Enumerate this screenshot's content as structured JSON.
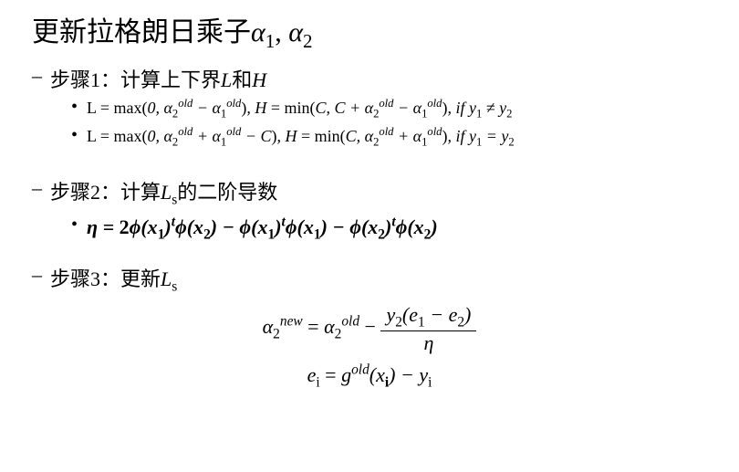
{
  "title": "更新拉格朗日乘子α₁, α₂",
  "steps": {
    "step1": {
      "label": "步骤1：计算上下界L和H",
      "formula1": "L = max(0, α₂ᵒˡᵈ − α₁ᵒˡᵈ), H = min(C, C + α₂ᵒˡᵈ − α₁ᵒˡᵈ), if y₁ ≠ y₂",
      "formula2": "L = max(0, α₂ᵒˡᵈ + α₁ᵒˡᵈ − C), H = min(C, α₂ᵒˡᵈ + α₁ᵒˡᵈ), if y₁ = y₂"
    },
    "step2": {
      "label": "步骤2：计算Lₛ的二阶导数",
      "formula": "η = 2ϕ(x₁)ᵗϕ(x₂) − ϕ(x₁)ᵗϕ(x₁) − ϕ(x₂)ᵗϕ(x₂)"
    },
    "step3": {
      "label": "步骤3：更新Lₛ",
      "formula_alpha_lhs": "α₂ⁿᵉʷ = α₂ᵒˡᵈ −",
      "formula_alpha_num": "y₂(e₁ − e₂)",
      "formula_alpha_den": "η",
      "formula_e": "eᵢ = gᵒˡᵈ(xᵢ) − yᵢ"
    }
  },
  "colors": {
    "text": "#000000",
    "background": "#ffffff"
  },
  "fontsize": {
    "title": 30,
    "step": 22,
    "bullet": 18,
    "centered": 22
  }
}
